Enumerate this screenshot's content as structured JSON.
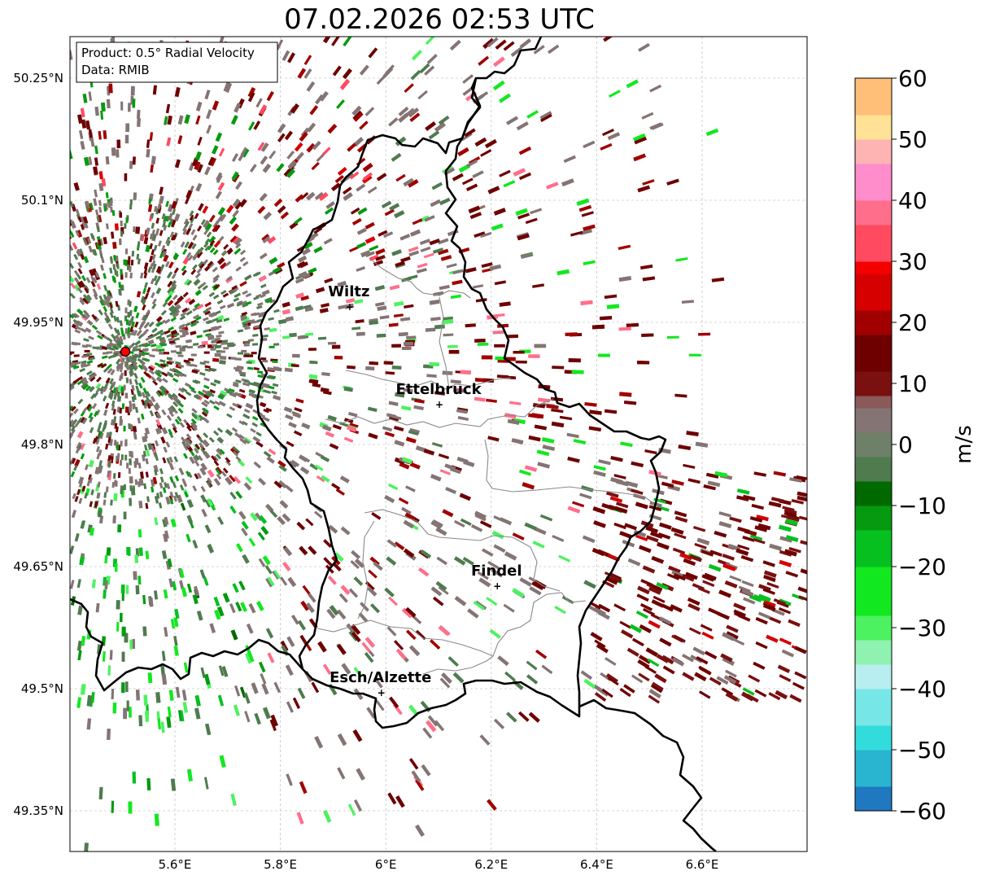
{
  "title": "07.02.2026 02:53 UTC",
  "info_box": {
    "product_line": "Product: 0.5° Radial Velocity",
    "data_line": "Data: RMIB"
  },
  "map_extent": {
    "lon_min": 5.4,
    "lon_max": 6.8,
    "lat_min": 49.3,
    "lat_max": 50.3
  },
  "lon_ticks": [
    {
      "value": 5.6,
      "label": "5.6°E"
    },
    {
      "value": 5.8,
      "label": "5.8°E"
    },
    {
      "value": 6.0,
      "label": "6°E"
    },
    {
      "value": 6.2,
      "label": "6.2°E"
    },
    {
      "value": 6.4,
      "label": "6.4°E"
    },
    {
      "value": 6.6,
      "label": "6.6°E"
    }
  ],
  "lat_ticks": [
    {
      "value": 50.25,
      "label": "50.25°N"
    },
    {
      "value": 50.1,
      "label": "50.1°N"
    },
    {
      "value": 49.95,
      "label": "49.95°N"
    },
    {
      "value": 49.8,
      "label": "49.8°N"
    },
    {
      "value": 49.65,
      "label": "49.65°N"
    },
    {
      "value": 49.5,
      "label": "49.5°N"
    },
    {
      "value": 49.35,
      "label": "49.35°N"
    }
  ],
  "radar_site": {
    "lon": 5.506,
    "lat": 49.914,
    "color": "#ff0000"
  },
  "cities": [
    {
      "name": "Wiltz",
      "lon": 5.93,
      "lat": 49.97
    },
    {
      "name": "Ettelbruck",
      "lon": 6.1,
      "lat": 49.85
    },
    {
      "name": "Findel",
      "lon": 6.21,
      "lat": 49.627
    },
    {
      "name": "Esch/Alzette",
      "lon": 5.99,
      "lat": 49.496
    }
  ],
  "colorbar": {
    "min": -60,
    "max": 60,
    "unit_label": "m/s",
    "ticks": [
      {
        "value": 60,
        "label": "60"
      },
      {
        "value": 50,
        "label": "50"
      },
      {
        "value": 40,
        "label": "40"
      },
      {
        "value": 30,
        "label": "30"
      },
      {
        "value": 20,
        "label": "20"
      },
      {
        "value": 10,
        "label": "10"
      },
      {
        "value": 0,
        "label": "0"
      },
      {
        "value": -10,
        "label": "−10"
      },
      {
        "value": -20,
        "label": "−20"
      },
      {
        "value": -30,
        "label": "−30"
      },
      {
        "value": -40,
        "label": "−40"
      },
      {
        "value": -50,
        "label": "−50"
      },
      {
        "value": -60,
        "label": "−60"
      }
    ],
    "stops": [
      {
        "value": -60,
        "color": "#1f78c0"
      },
      {
        "value": -55,
        "color": "#29b4cf"
      },
      {
        "value": -50,
        "color": "#33dcdc"
      },
      {
        "value": -45,
        "color": "#77e6e6"
      },
      {
        "value": -40,
        "color": "#b8eef0"
      },
      {
        "value": -36,
        "color": "#8ff2b0"
      },
      {
        "value": -32,
        "color": "#4cf25f"
      },
      {
        "value": -27,
        "color": "#12e81f"
      },
      {
        "value": -20,
        "color": "#06c020"
      },
      {
        "value": -14,
        "color": "#059a10"
      },
      {
        "value": -9,
        "color": "#006a00"
      },
      {
        "value": -5,
        "color": "#4f7b4f"
      },
      {
        "value": -1,
        "color": "#6e8067"
      },
      {
        "value": 2,
        "color": "#857474"
      },
      {
        "value": 7,
        "color": "#8a5959"
      },
      {
        "value": 9,
        "color": "#7a1010"
      },
      {
        "value": 12,
        "color": "#6e0000"
      },
      {
        "value": 18,
        "color": "#a00000"
      },
      {
        "value": 23,
        "color": "#d60000"
      },
      {
        "value": 28,
        "color": "#f50000"
      },
      {
        "value": 31,
        "color": "#ff4a60"
      },
      {
        "value": 36,
        "color": "#ff6e8a"
      },
      {
        "value": 41,
        "color": "#ff8ccb"
      },
      {
        "value": 46,
        "color": "#ffb4b4"
      },
      {
        "value": 50,
        "color": "#ffe296"
      },
      {
        "value": 55,
        "color": "#ffbf78"
      },
      {
        "value": 60,
        "color": "#ff9650"
      }
    ]
  },
  "colors": {
    "border": "#000000",
    "admin_lines": "#8a8a8a",
    "grid": "#b0b0b0"
  }
}
